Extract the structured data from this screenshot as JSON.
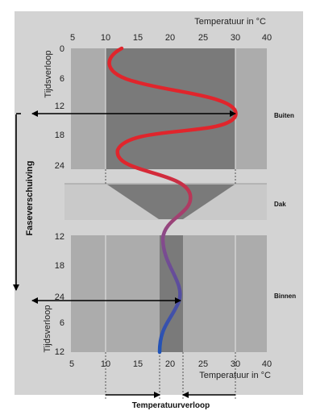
{
  "colors": {
    "background": "#d3d3d3",
    "panel_light": "#acacac",
    "panel_dark": "#7a7a7a",
    "roof_light": "#c9c9c9",
    "curve_outside": "#e0252c",
    "curve_mid": "#8a4a8a",
    "curve_inside": "#1f53b8"
  },
  "top_axis": {
    "label": "Temperatuur in °C",
    "ticks": [
      "5",
      "10",
      "15",
      "20",
      "25",
      "30",
      "40"
    ]
  },
  "bottom_axis": {
    "label": "Temperatuur in °C",
    "ticks": [
      "5",
      "10",
      "15",
      "20",
      "25",
      "30",
      "40"
    ]
  },
  "top_time_axis": {
    "label": "Tijdsverloop",
    "ticks": [
      "0",
      "6",
      "12",
      "18",
      "24"
    ]
  },
  "bottom_time_axis": {
    "label": "Tijdsverloop",
    "ticks": [
      "12",
      "18",
      "24",
      "6",
      "12"
    ]
  },
  "zones": {
    "outside": "Buiten",
    "roof": "Dak",
    "inside": "Binnen"
  },
  "phase_shift_label": "Faseverschuiving",
  "temperature_course_label": "Temperatuurverloop"
}
